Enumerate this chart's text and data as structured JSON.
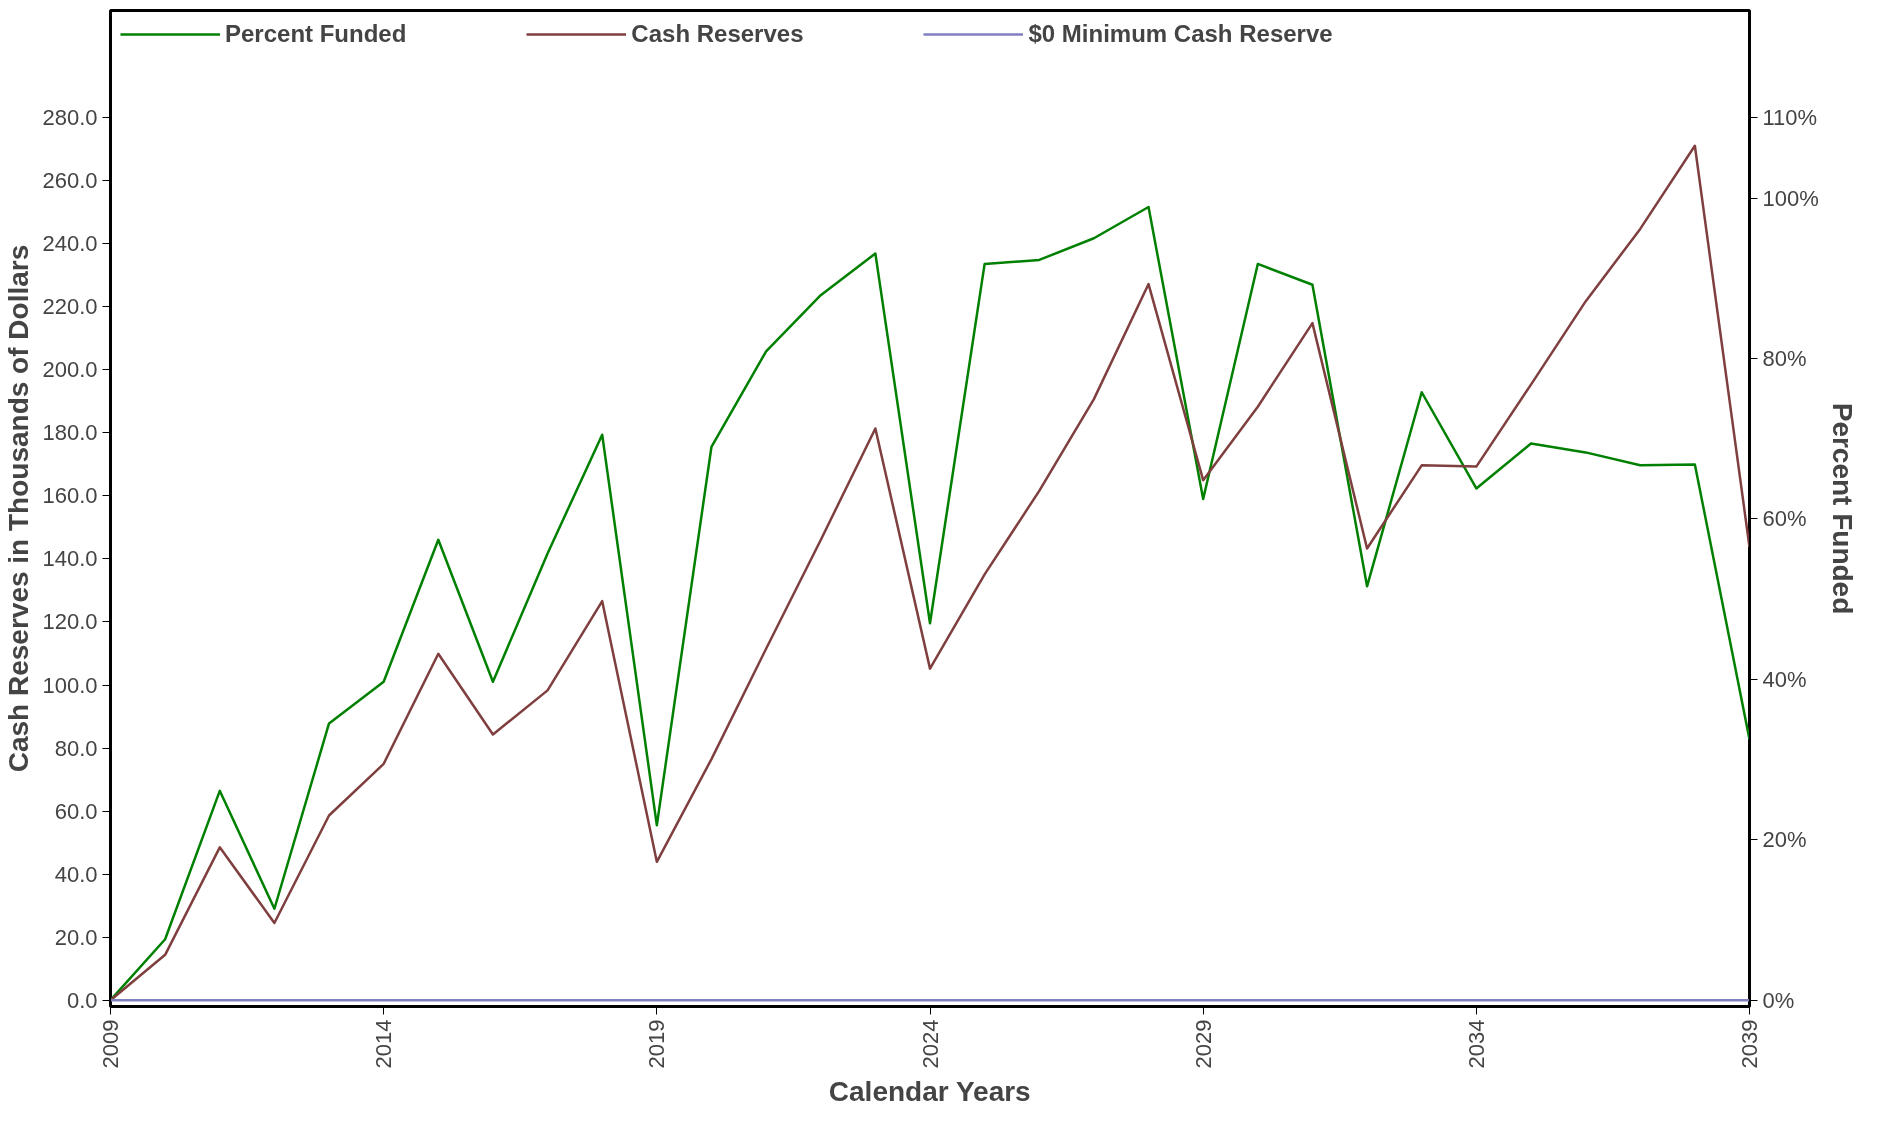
{
  "chart_data": {
    "type": "line",
    "xlabel": "Calendar Years",
    "ylabel": "Cash Reserves in Thousands of Dollars",
    "y2label": "Percent Funded",
    "x": [
      2009,
      2010,
      2011,
      2012,
      2013,
      2014,
      2015,
      2016,
      2017,
      2018,
      2019,
      2020,
      2021,
      2022,
      2023,
      2024,
      2025,
      2026,
      2027,
      2028,
      2029,
      2030,
      2031,
      2032,
      2033,
      2034,
      2035,
      2036,
      2037,
      2038,
      2039
    ],
    "series": [
      {
        "name": "Percent Funded",
        "color": "#008000",
        "axis": "y2",
        "values": [
          0,
          7.6,
          26.1,
          11.4,
          34.5,
          39.7,
          57.4,
          39.7,
          55.7,
          70.5,
          21.8,
          69.0,
          80.9,
          87.9,
          93.1,
          47.0,
          91.8,
          92.3,
          95.0,
          98.9,
          62.5,
          91.8,
          89.2,
          51.6,
          75.8,
          63.8,
          69.4,
          68.3,
          66.7,
          66.8,
          32.5
        ]
      },
      {
        "name": "Cash Reserves",
        "color": "#7f3f3f",
        "values": [
          0,
          14.4,
          48.5,
          24.5,
          58.6,
          75.0,
          109.9,
          84.3,
          98.3,
          126.6,
          43.9,
          76.5,
          111.5,
          146.0,
          181.4,
          105.2,
          135.1,
          161.6,
          190.7,
          227.2,
          165.0,
          188.3,
          214.8,
          143.3,
          169.7,
          169.3,
          195.3,
          221.7,
          244.7,
          271.1,
          143.7
        ]
      },
      {
        "name": "$0 Minimum Cash Reserve",
        "color": "#8080c0",
        "values": [
          0,
          0,
          0,
          0,
          0,
          0,
          0,
          0,
          0,
          0,
          0,
          0,
          0,
          0,
          0,
          0,
          0,
          0,
          0,
          0,
          0,
          0,
          0,
          0,
          0,
          0,
          0,
          0,
          0,
          0,
          0
        ]
      }
    ],
    "xlim": [
      2009,
      2039
    ],
    "xticks": [
      2009,
      2014,
      2019,
      2024,
      2029,
      2034,
      2039
    ],
    "ylim": [
      -2,
      314
    ],
    "yticks": [
      {
        "value": 0,
        "label": "0.0"
      },
      {
        "value": 20,
        "label": "20.0"
      },
      {
        "value": 40,
        "label": "40.0"
      },
      {
        "value": 60,
        "label": "60.0"
      },
      {
        "value": 80,
        "label": "80.0"
      },
      {
        "value": 100,
        "label": "100.0"
      },
      {
        "value": 120,
        "label": "120.0"
      },
      {
        "value": 140,
        "label": "140.0"
      },
      {
        "value": 160,
        "label": "160.0"
      },
      {
        "value": 180,
        "label": "180.0"
      },
      {
        "value": 200,
        "label": "200.0"
      },
      {
        "value": 220,
        "label": "220.0"
      },
      {
        "value": 240,
        "label": "240.0"
      },
      {
        "value": 260,
        "label": "260.0"
      },
      {
        "value": 280,
        "label": "280.0"
      }
    ],
    "y2lim": [
      -0.79,
      123.4
    ],
    "y2ticks": [
      {
        "value": 0,
        "label": "0%"
      },
      {
        "value": 20,
        "label": "20%"
      },
      {
        "value": 40,
        "label": "40%"
      },
      {
        "value": 60,
        "label": "60%"
      },
      {
        "value": 80,
        "label": "80%"
      },
      {
        "value": 100,
        "label": "100%"
      },
      {
        "value": 110,
        "label": "110%"
      }
    ],
    "legend": "top left",
    "grid": false,
    "marker": "none",
    "line_style": "solid"
  }
}
